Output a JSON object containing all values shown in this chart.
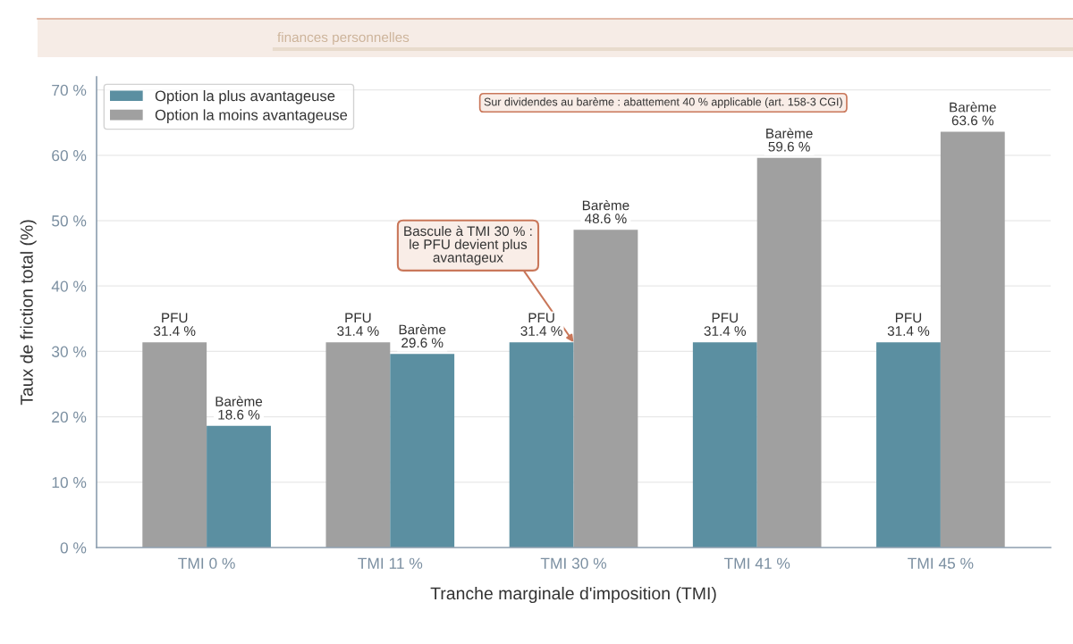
{
  "chart_data": {
    "type": "bar",
    "subtitle": "finances personnelles",
    "xlabel": "Tranche marginale d'imposition (TMI)",
    "ylabel": "Taux de friction total (%)",
    "categories": [
      "TMI 0 %",
      "TMI 11 %",
      "TMI 30 %",
      "TMI 41 %",
      "TMI 45 %"
    ],
    "series": [
      {
        "name": "Option la plus avantageuse",
        "color": "#5b8fa1",
        "values": [
          null,
          null,
          31.4,
          31.4,
          31.4
        ],
        "value_labels": [
          null,
          null,
          "PFU\n31.4 %",
          "PFU\n31.4 %",
          "PFU\n31.4 %"
        ]
      },
      {
        "name": "Option la moins avantageuse",
        "color": "#a0a0a0",
        "values": [
          31.4,
          31.4,
          null,
          null,
          null
        ],
        "value_labels": [
          "PFU\n31.4 %",
          "PFU\n31.4 %",
          null,
          null,
          null
        ]
      },
      {
        "color": "#5b8fa1",
        "values": [
          18.6,
          29.6,
          null,
          null,
          null
        ],
        "value_labels": [
          "Barème\n18.6 %",
          "Barème\n29.6 %",
          null,
          null,
          null
        ]
      },
      {
        "color": "#a0a0a0",
        "values": [
          null,
          null,
          48.6,
          59.6,
          63.6
        ],
        "value_labels": [
          null,
          null,
          "Barème\n48.6 %",
          "Barème\n59.6 %",
          "Barème\n63.6 %"
        ]
      }
    ],
    "ylim": [
      0,
      72
    ],
    "yticks": [
      {
        "value": 0,
        "label": "0 %"
      },
      {
        "value": 10,
        "label": "10 %"
      },
      {
        "value": 20,
        "label": "20 %"
      },
      {
        "value": 30,
        "label": "30 %"
      },
      {
        "value": 40,
        "label": "40 %"
      },
      {
        "value": 50,
        "label": "50 %"
      },
      {
        "value": 60,
        "label": "60 %"
      },
      {
        "value": 70,
        "label": "70 %"
      }
    ],
    "grid": "y",
    "legend": "top left",
    "annotations": [
      "Sur dividendes au barème : abattement 40 % applicable (art. 158-3 CGI)",
      {
        "text": "Bascule à TMI 30 % :\nle PFU devient plus\navantageux",
        "x": "TMI 30 %",
        "y": 31.4
      }
    ]
  }
}
